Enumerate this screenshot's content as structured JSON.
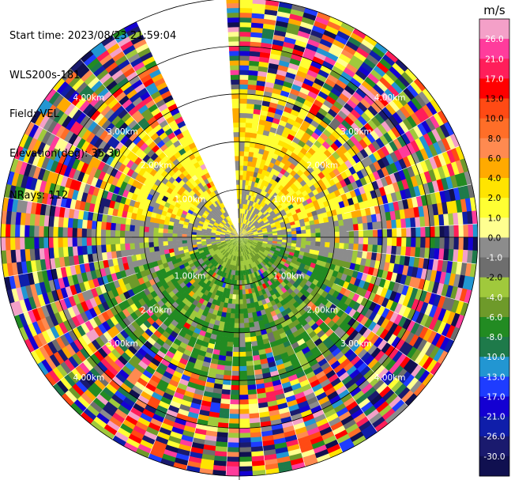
{
  "header": {
    "start_time": "Start time: 2023/08/23 21:59:04",
    "instrument": "WLS200s-181",
    "field": "Field: VEL",
    "elevation": "Elevation(deg): 35.30",
    "nrays": "NRays: 112"
  },
  "chart_data": {
    "type": "heatmap",
    "projection": "polar-ppi",
    "field": "VEL",
    "units": "m/s",
    "range_rings_km": [
      1.0,
      2.0,
      3.0,
      4.0,
      5.0
    ],
    "ring_labels": [
      "1.00km",
      "2.00km",
      "3.00km",
      "4.00km",
      "5.00km"
    ],
    "max_range_km": 5.0,
    "gate_size_km": 0.1,
    "gap_azimuth_deg": [
      333,
      358
    ],
    "colorbar": {
      "title": "m/s",
      "ticks": [
        26.0,
        21.0,
        17.0,
        13.0,
        10.0,
        8.0,
        6.0,
        4.0,
        2.0,
        1.0,
        0.0,
        -1.0,
        -2.0,
        -4.0,
        -6.0,
        -8.0,
        -10.0,
        -13.0,
        -17.0,
        -21.0,
        -26.0,
        -30.0
      ],
      "tick_labels": [
        "26.0",
        "21.0",
        "17.0",
        "13.0",
        "10.0",
        "8.0",
        "6.0",
        "4.0",
        "2.0",
        "1.0",
        "0.0",
        "-1.0",
        "-2.0",
        "-4.0",
        "-6.0",
        "-8.0",
        "-10.0",
        "-13.0",
        "-17.0",
        "-21.0",
        "-26.0",
        "-30.0"
      ],
      "colors": [
        "#f4a0c8",
        "#ff3c9c",
        "#ff1e5a",
        "#ff0000",
        "#ff4a14",
        "#ff6e28",
        "#ff8a50",
        "#ffaa00",
        "#ffe400",
        "#ffff33",
        "#ffff90",
        "#8c8c8c",
        "#6e6e6e",
        "#a0c93c",
        "#6e9a2a",
        "#228b22",
        "#1e7a4a",
        "#2296d2",
        "#1e3cff",
        "#1400d2",
        "#0f1eaa",
        "#1a1a6e",
        "#101050"
      ]
    }
  }
}
